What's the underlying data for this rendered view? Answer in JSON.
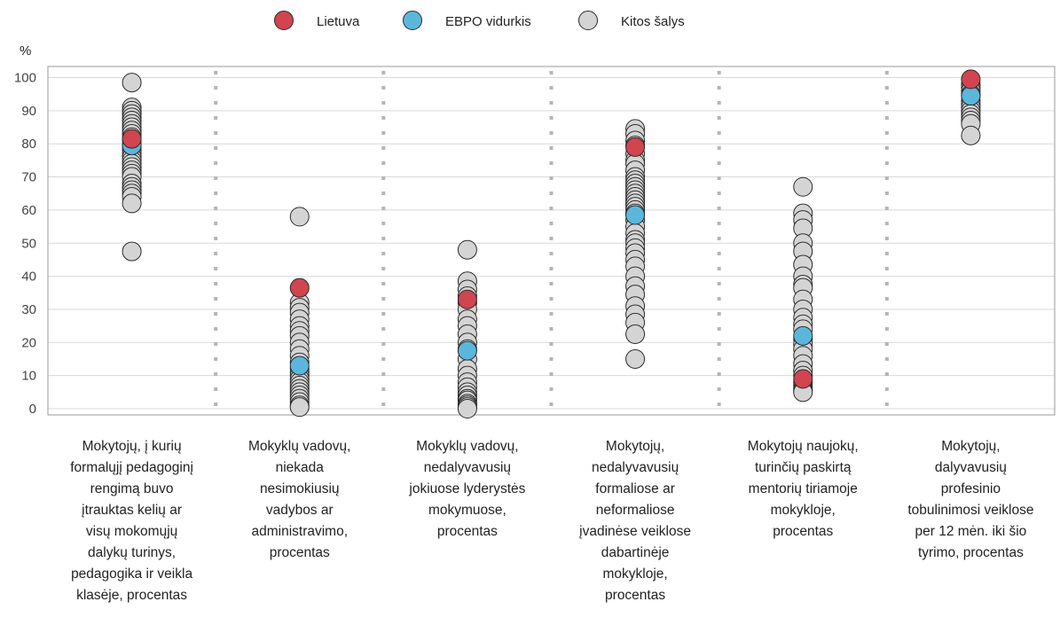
{
  "chart_data": {
    "type": "scatter",
    "ylabel": "%",
    "ylim": [
      0,
      100
    ],
    "yticks": [
      0,
      10,
      20,
      30,
      40,
      50,
      60,
      70,
      80,
      90,
      100
    ],
    "grid": true,
    "legend_position": "top-center",
    "legend": [
      {
        "name": "Lietuva",
        "color": "#d0454f"
      },
      {
        "name": "EBPO vidurkis",
        "color": "#5ab7db"
      },
      {
        "name": "Kitos šalys",
        "color": "#d4d4d4"
      }
    ],
    "categories": [
      "Mokytojų, į kurių\nformalųjį pedagoginį\nrengimą buvo\nįtrauktas kelių ar\nvisų mokomųjų\ndalykų turinys,\npedagogika ir veikla\nklasėje, procentas",
      "Mokyklų vadovų,\nniekada\nnesimokiusių\nvadybos ar\nadministravimo,\nprocentas",
      "Mokyklų vadovų,\nnedalyvavusių\njokiuose lyderystės\nmokymuose,\nprocentas",
      "Mokytojų,\nnedalyvavusių\nformaliose ar\nneformaliose\nįvadinėse veiklose\ndabartinėje\nmokykloje,\nprocentas",
      "Mokytojų naujokų,\nturinčių paskirtą\nmentorių tiriamoje\nmokykloje,\nprocentas",
      "Mokytojų,\ndalyvavusių\nprofesinio\ntobulinimosi veiklose\nper 12 mėn. iki šio\ntyrimo, procentas"
    ],
    "series": [
      {
        "name": "Kitos šalys",
        "values": [
          [
            98.5,
            91,
            90,
            89,
            88,
            87,
            86,
            85,
            84,
            83,
            82,
            81,
            80,
            79,
            78,
            77,
            76,
            75,
            74,
            73,
            72,
            71,
            70,
            68,
            67,
            66,
            65,
            64,
            62,
            47.5
          ],
          [
            58,
            32,
            30.5,
            29,
            27,
            25,
            23.5,
            22,
            20,
            18,
            16,
            14,
            12,
            11,
            10,
            9,
            8,
            7,
            6,
            5,
            4,
            3,
            2,
            1,
            0.5
          ],
          [
            48,
            38.5,
            36,
            34,
            32,
            30,
            27,
            25,
            22.5,
            20,
            18,
            15,
            12,
            10,
            8,
            6.5,
            5,
            4,
            3,
            2.5,
            1.5,
            1,
            0.5,
            0
          ],
          [
            84.5,
            83,
            81,
            79.5,
            77,
            75,
            74,
            72,
            70,
            69,
            68,
            67,
            66,
            65,
            64,
            63,
            62,
            61,
            60,
            59,
            57,
            55,
            53,
            51,
            50,
            48.5,
            47,
            45,
            43,
            40,
            37,
            34.5,
            31,
            28.5,
            26,
            22.5,
            15
          ],
          [
            67,
            59,
            57,
            54.5,
            50,
            47.5,
            43.5,
            40,
            37.5,
            36.5,
            33,
            30,
            27.5,
            25.5,
            24,
            21,
            19.5,
            18,
            16,
            13.5,
            11.5,
            10,
            8,
            7,
            6,
            5.5,
            5
          ],
          [
            98,
            97,
            96,
            95,
            94.5,
            93,
            92,
            91,
            90,
            89,
            88,
            87,
            86,
            82.5
          ]
        ]
      },
      {
        "name": "EBPO vidurkis",
        "values": [
          79.5,
          13,
          17.5,
          58.5,
          22,
          94.5
        ]
      },
      {
        "name": "Lietuva",
        "values": [
          81.5,
          36.5,
          33,
          79,
          9,
          99.5
        ]
      }
    ]
  }
}
